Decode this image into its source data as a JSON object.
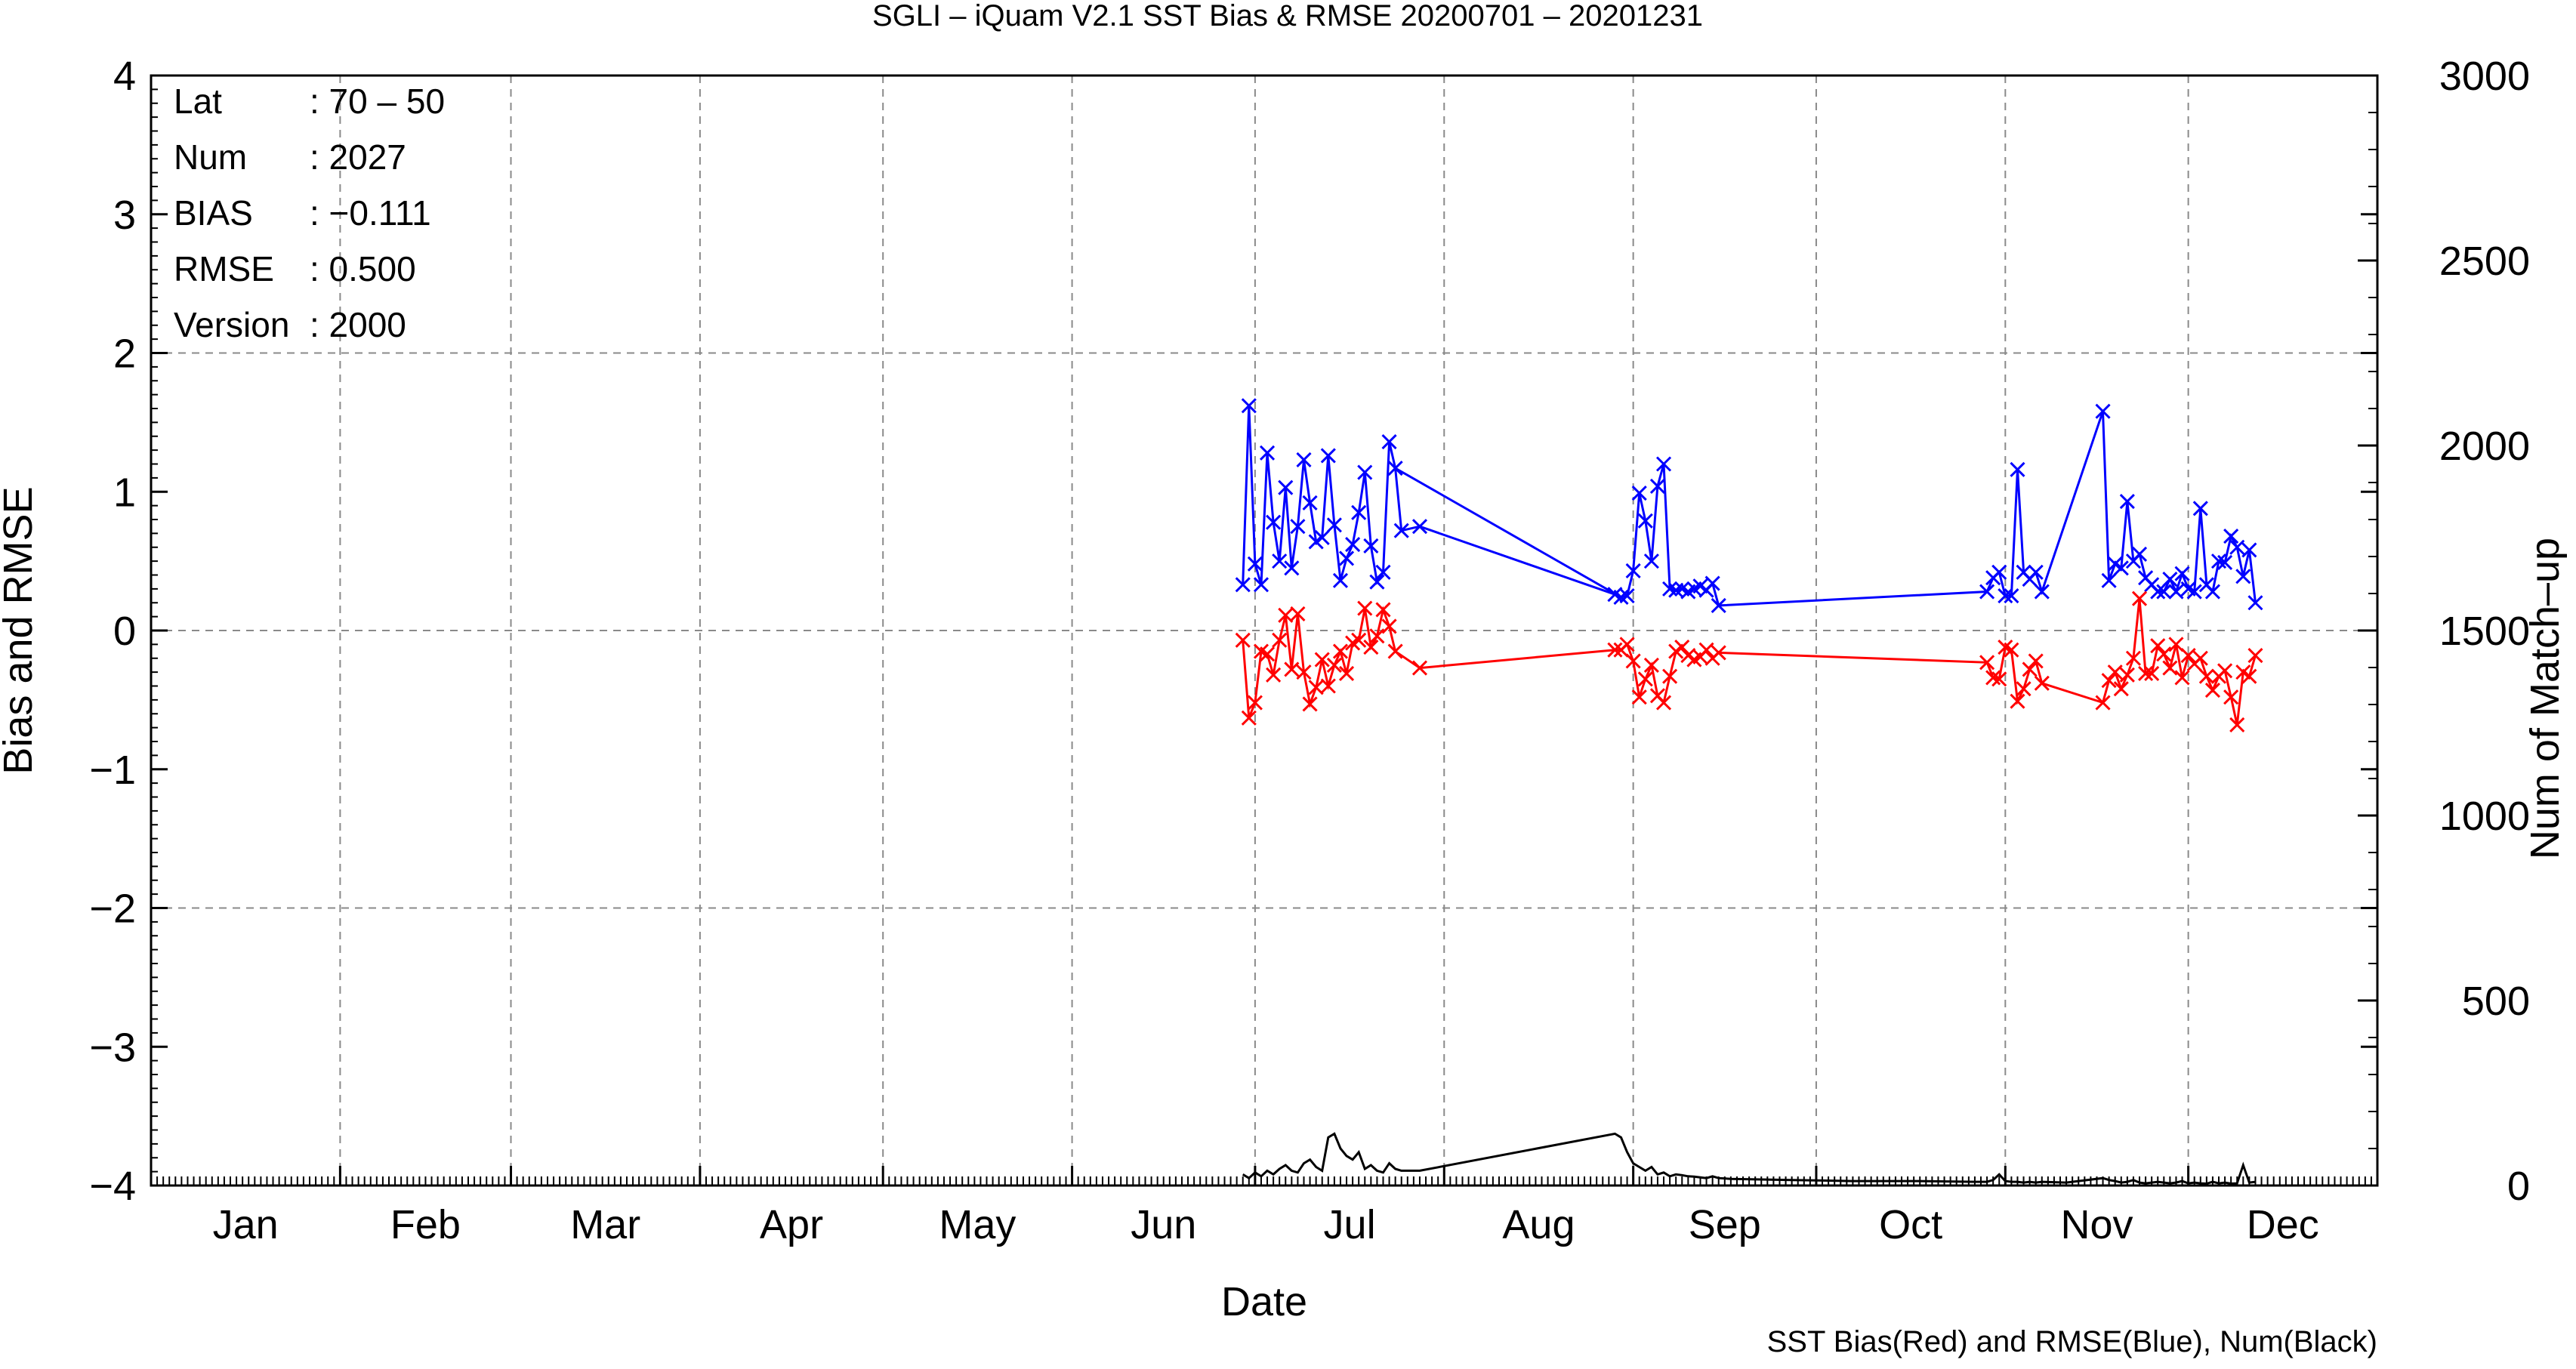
{
  "chart_data": {
    "type": "line",
    "title": "SGLI – iQuam V2.1 SST Bias & RMSE 20200701 – 20201231",
    "xlabel": "Date",
    "ylabel_left": "Bias and RMSE",
    "ylabel_right": "Num of Match–up",
    "footer": "SST Bias(Red) and RMSE(Blue), Num(Black)",
    "month_labels": [
      "Jan",
      "Feb",
      "Mar",
      "Apr",
      "May",
      "Jun",
      "Jul",
      "Aug",
      "Sep",
      "Oct",
      "Nov",
      "Dec"
    ],
    "x_range_days": [
      1,
      366
    ],
    "ylim_left": [
      -4,
      4
    ],
    "ylim_right": [
      0,
      3000
    ],
    "left_ticks": [
      "4",
      "3",
      "2",
      "1",
      "0",
      "−1",
      "−2",
      "−3",
      "−4"
    ],
    "right_ticks": [
      "3000",
      "2500",
      "2000",
      "1500",
      "1000",
      "500",
      "0"
    ],
    "grid": true,
    "info": [
      {
        "key": "Lat",
        "value": ": 70 – 50"
      },
      {
        "key": "Num",
        "value": ": 2027"
      },
      {
        "key": "BIAS",
        "value": ": −0.111"
      },
      {
        "key": "RMSE",
        "value": ": 0.500"
      },
      {
        "key": "Version",
        "value": ": 2000"
      }
    ],
    "series": [
      {
        "color": "#0000ff",
        "axis": "left",
        "marker": "x",
        "x": [
          180,
          181,
          182,
          183,
          184,
          185,
          186,
          187,
          188,
          189,
          190,
          191,
          192,
          193,
          194,
          195,
          196,
          197,
          198,
          199,
          200,
          201,
          202,
          203,
          204,
          205,
          242,
          243,
          244,
          245,
          246,
          247,
          248,
          249,
          250,
          251,
          252,
          253,
          254,
          255,
          256,
          257,
          258,
          302,
          303,
          304,
          305,
          306,
          307,
          308,
          309,
          310,
          311,
          321,
          322,
          323,
          324,
          325,
          326,
          327,
          328,
          329,
          330,
          331,
          332,
          333,
          334,
          335,
          336,
          337,
          338,
          339,
          340,
          341,
          342,
          343,
          344,
          345,
          346
        ],
        "y": [
          0.33,
          1.62,
          0.48,
          0.33,
          1.28,
          0.78,
          0.5,
          1.03,
          0.45,
          0.75,
          1.23,
          0.92,
          0.64,
          0.67,
          1.26,
          0.76,
          0.36,
          0.52,
          0.62,
          0.85,
          1.14,
          0.61,
          0.35,
          0.42,
          1.36,
          1.17,
          0.24,
          0.25,
          0.43,
          0.99,
          0.79,
          0.5,
          1.04,
          1.2,
          0.3,
          0.29,
          0.3,
          0.28,
          0.3,
          0.32,
          0.29,
          0.34,
          0.18,
          0.28,
          0.38,
          0.42,
          0.25,
          0.25,
          1.16,
          0.42,
          0.37,
          0.42,
          0.28,
          1.58,
          0.36,
          0.48,
          0.45,
          0.93,
          0.5,
          0.55,
          0.38,
          0.33,
          0.28,
          0.28,
          0.37,
          0.28,
          0.41,
          0.3,
          0.28,
          0.88,
          0.33,
          0.28,
          0.5,
          0.49,
          0.68,
          0.6,
          0.39,
          0.58,
          0.2
        ],
        "x_tail": [
          206,
          209,
          241
        ],
        "y_tail": [
          0.72,
          0.75,
          0.26
        ]
      },
      {
        "color": "#ff0000",
        "axis": "left",
        "marker": "x",
        "x": [
          180,
          181,
          182,
          183,
          184,
          185,
          186,
          187,
          188,
          189,
          190,
          191,
          192,
          193,
          194,
          195,
          196,
          197,
          198,
          199,
          200,
          201,
          202,
          203,
          204,
          205,
          209,
          241,
          242,
          243,
          244,
          245,
          246,
          247,
          248,
          249,
          250,
          251,
          252,
          253,
          254,
          255,
          256,
          257,
          258,
          302,
          303,
          304,
          305,
          306,
          307,
          308,
          309,
          310,
          311,
          321,
          322,
          323,
          324,
          325,
          326,
          327,
          328,
          329,
          330,
          331,
          332,
          333,
          334,
          335,
          336,
          337,
          338,
          339,
          340,
          341,
          342,
          343,
          344,
          345,
          346
        ],
        "y": [
          -0.07,
          -0.63,
          -0.52,
          -0.15,
          -0.17,
          -0.32,
          -0.07,
          0.11,
          -0.28,
          0.12,
          -0.3,
          -0.53,
          -0.41,
          -0.21,
          -0.4,
          -0.25,
          -0.15,
          -0.31,
          -0.09,
          -0.07,
          0.16,
          -0.12,
          -0.04,
          0.15,
          0.03,
          -0.15,
          -0.27,
          -0.14,
          -0.14,
          -0.1,
          -0.22,
          -0.48,
          -0.35,
          -0.25,
          -0.47,
          -0.52,
          -0.33,
          -0.15,
          -0.12,
          -0.18,
          -0.21,
          -0.19,
          -0.14,
          -0.2,
          -0.16,
          -0.23,
          -0.34,
          -0.35,
          -0.12,
          -0.14,
          -0.51,
          -0.42,
          -0.28,
          -0.22,
          -0.38,
          -0.52,
          -0.36,
          -0.3,
          -0.42,
          -0.32,
          -0.2,
          0.23,
          -0.31,
          -0.31,
          -0.11,
          -0.17,
          -0.27,
          -0.1,
          -0.34,
          -0.18,
          -0.24,
          -0.2,
          -0.33,
          -0.43,
          -0.33,
          -0.29,
          -0.48,
          -0.68,
          -0.3,
          -0.33,
          -0.18
        ]
      },
      {
        "color": "#000000",
        "axis": "right",
        "marker": "none",
        "x": [
          180,
          181,
          182,
          183,
          184,
          185,
          186,
          187,
          188,
          189,
          190,
          191,
          192,
          193,
          194,
          195,
          196,
          197,
          198,
          199,
          200,
          201,
          202,
          203,
          204,
          205,
          206,
          209,
          241,
          242,
          243,
          244,
          245,
          246,
          247,
          248,
          249,
          250,
          251,
          252,
          253,
          254,
          255,
          256,
          257,
          258,
          260,
          270,
          280,
          290,
          300,
          302,
          303,
          304,
          305,
          306,
          307,
          308,
          309,
          310,
          311,
          315,
          321,
          322,
          323,
          324,
          325,
          326,
          327,
          328,
          329,
          330,
          331,
          332,
          333,
          334,
          335,
          336,
          337,
          338,
          339,
          340,
          341,
          342,
          343,
          344,
          345,
          346
        ],
        "y": [
          30,
          20,
          35,
          25,
          40,
          30,
          45,
          55,
          40,
          35,
          60,
          70,
          50,
          40,
          130,
          140,
          100,
          80,
          70,
          90,
          45,
          55,
          40,
          35,
          60,
          45,
          40,
          40,
          140,
          130,
          90,
          60,
          50,
          40,
          50,
          30,
          35,
          25,
          30,
          28,
          25,
          24,
          22,
          20,
          25,
          20,
          18,
          15,
          12,
          12,
          10,
          10,
          15,
          30,
          12,
          10,
          10,
          8,
          10,
          8,
          10,
          8,
          20,
          15,
          12,
          8,
          10,
          15,
          8,
          6,
          8,
          10,
          8,
          6,
          8,
          12,
          6,
          8,
          6,
          5,
          10,
          6,
          8,
          5,
          6,
          55,
          8,
          10
        ]
      }
    ]
  }
}
